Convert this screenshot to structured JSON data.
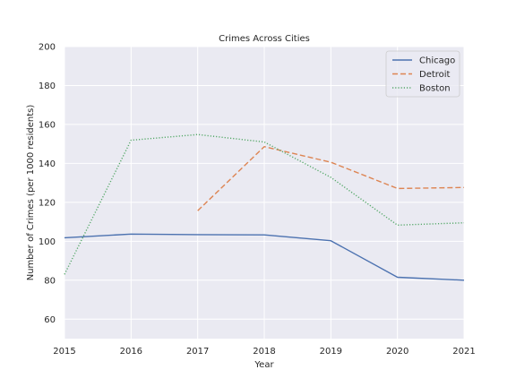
{
  "chart_data": {
    "type": "line",
    "title": "Crimes Across Cities",
    "xlabel": "Year",
    "ylabel": "Number of Crimes (per 1000 residents)",
    "x": [
      2015,
      2016,
      2017,
      2018,
      2019,
      2020,
      2021
    ],
    "xlim": [
      2015,
      2021
    ],
    "ylim": [
      50,
      200
    ],
    "yticks": [
      60,
      80,
      100,
      120,
      140,
      160,
      180,
      200
    ],
    "grid": true,
    "legend_position": "top-right",
    "series": [
      {
        "name": "Chicago",
        "values": [
          101.8,
          103.7,
          103.4,
          103.3,
          100.3,
          81.5,
          80.0
        ],
        "color": "#4c72b0",
        "style": "solid"
      },
      {
        "name": "Detroit",
        "values": [
          null,
          null,
          115.7,
          148.6,
          140.6,
          127.1,
          127.6
        ],
        "color": "#dd8452",
        "style": "dashed"
      },
      {
        "name": "Boston",
        "values": [
          83.0,
          151.9,
          154.8,
          151.0,
          132.8,
          108.3,
          109.5
        ],
        "color": "#55a868",
        "style": "dotted"
      }
    ]
  }
}
